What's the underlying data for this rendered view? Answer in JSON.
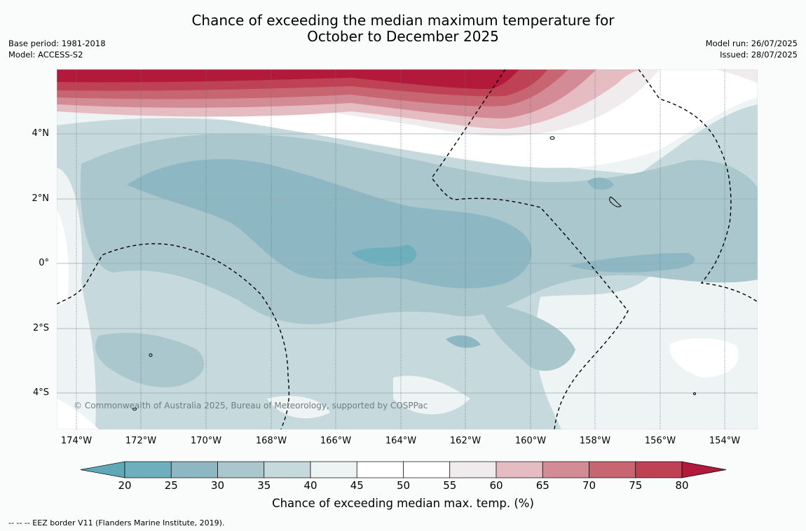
{
  "title": {
    "line1": "Chance of exceeding the median maximum temperature for",
    "line2": "October to December 2025"
  },
  "meta_left": {
    "base_period": "Base period: 1981-2018",
    "model": "Model: ACCESS-S2"
  },
  "meta_right": {
    "model_run": "Model run: 26/07/2025",
    "issued": "Issued: 28/07/2025"
  },
  "map": {
    "lat_labels": [
      "4°N",
      "2°N",
      "0°",
      "2°S",
      "4°S"
    ],
    "lon_labels": [
      "174°W",
      "172°W",
      "170°W",
      "168°W",
      "166°W",
      "164°W",
      "162°W",
      "160°W",
      "158°W",
      "156°W",
      "154°W"
    ],
    "copyright": "© Commonwealth of Australia 2025, Bureau of Meteorology, supported by COSPPac"
  },
  "colorbar": {
    "ticks": [
      "20",
      "25",
      "30",
      "35",
      "40",
      "45",
      "50",
      "55",
      "60",
      "65",
      "70",
      "75",
      "80"
    ],
    "colors": [
      "#5fa8b5",
      "#6eafbd",
      "#8db7c3",
      "#a9c7cc",
      "#c6d9dc",
      "#eef3f4",
      "#ffffff",
      "#ffffff",
      "#f0eced",
      "#e4bcc2",
      "#d38b95",
      "#c76570",
      "#be4253",
      "#b2193a"
    ],
    "label": "Chance of exceeding median max. temp. (%)"
  },
  "footer": "--  --  -- EEZ border V11 (Flanders Marine Institute, 2019)."
}
